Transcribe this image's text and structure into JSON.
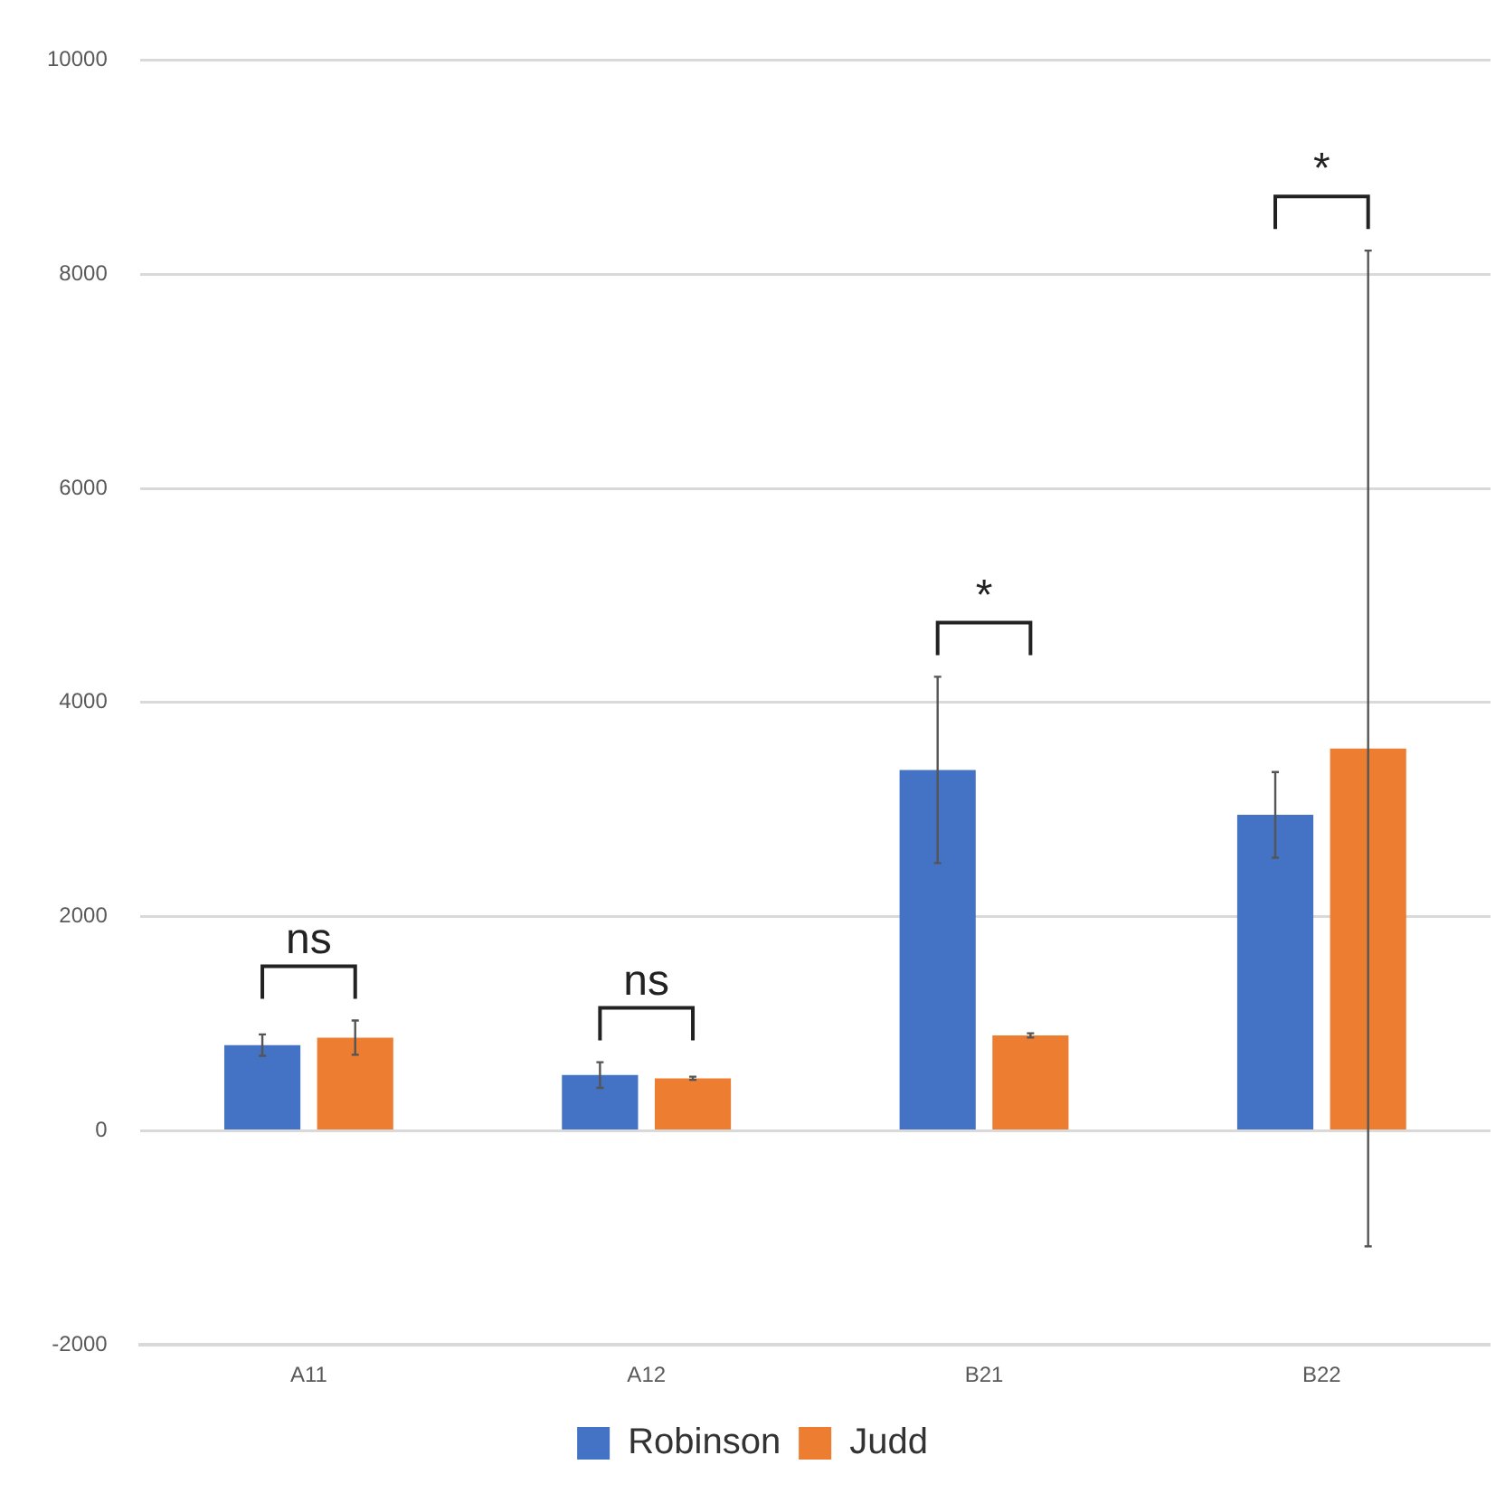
{
  "chart_data": {
    "type": "bar",
    "categories": [
      "A11",
      "A12",
      "B21",
      "B22"
    ],
    "series": [
      {
        "name": "Robinson",
        "color": "#4472c4",
        "values": [
          800,
          520,
          3370,
          2950
        ],
        "errors": [
          100,
          120,
          870,
          400
        ]
      },
      {
        "name": "Judd",
        "color": "#ed7d31",
        "values": [
          870,
          490,
          890,
          3570
        ],
        "errors": [
          160,
          15,
          20,
          4650
        ]
      }
    ],
    "ylim": [
      -2000,
      10000
    ],
    "yticks": [
      -2000,
      0,
      2000,
      4000,
      6000,
      8000,
      10000
    ],
    "grid": "y",
    "legend": "bottom",
    "annotations": [
      "ns",
      "ns",
      "*",
      "*"
    ]
  }
}
